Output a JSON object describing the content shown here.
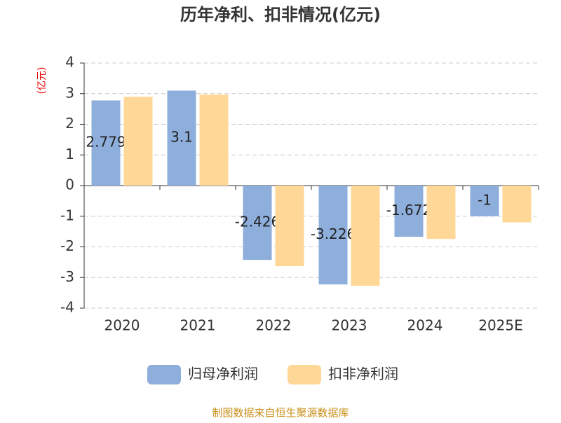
{
  "chart_data": {
    "type": "bar",
    "title": "历年净利、扣非情况(亿元)",
    "y_label": "(亿元)",
    "source": "制图数据来自恒生聚源数据库",
    "categories": [
      "2020",
      "2021",
      "2022",
      "2023",
      "2024",
      "2025E"
    ],
    "series": [
      {
        "name": "归母净利润",
        "color": "#8eaedb",
        "values": [
          2.779,
          3.1,
          -2.426,
          -3.226,
          -1.672,
          -1
        ]
      },
      {
        "name": "扣非净利润",
        "color": "#ffd898",
        "values": [
          2.9,
          2.97,
          -2.63,
          -3.27,
          -1.74,
          -1.2
        ]
      }
    ],
    "ylim": [
      -4,
      4
    ],
    "yticks": [
      -4,
      -3,
      -2,
      -1,
      0,
      1,
      2,
      3,
      4
    ],
    "grid": true
  }
}
